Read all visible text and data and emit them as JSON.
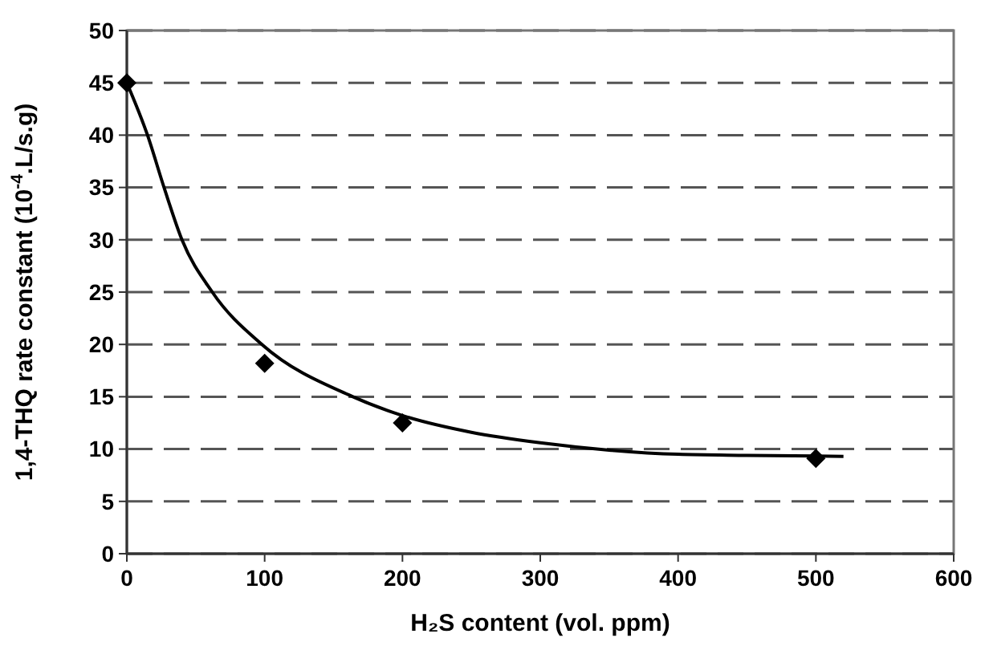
{
  "chart_data": {
    "type": "scatter",
    "xlabel": "H₂S content (vol. ppm)",
    "ylabel": "1,4-THQ rate constant (10$^{-4}$.L/s.g)",
    "xlim": [
      0,
      600
    ],
    "xticks": [
      0,
      100,
      200,
      300,
      400,
      500,
      600
    ],
    "ylim": [
      0,
      50
    ],
    "yticks": [
      0,
      5,
      10,
      15,
      20,
      25,
      30,
      35,
      40,
      45,
      50
    ],
    "grid": "y",
    "series": [
      {
        "color": "#000000",
        "marker": "diamond",
        "x": [
          0,
          100,
          200,
          500
        ],
        "values": [
          45,
          18.2,
          12.5,
          9.1
        ]
      },
      {
        "type": "line",
        "color": "#000000",
        "marker": "none",
        "line_style": "solid",
        "x": [
          0,
          15,
          27,
          40,
          62,
          98,
          164,
          200,
          250,
          300,
          350,
          400,
          450,
          520
        ],
        "values": [
          45,
          40,
          35,
          30,
          25,
          20,
          15,
          13.2,
          11.6,
          10.6,
          9.9,
          9.5,
          9.4,
          9.3
        ]
      }
    ]
  }
}
